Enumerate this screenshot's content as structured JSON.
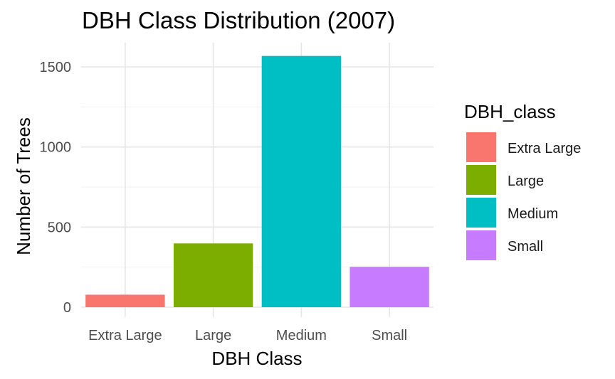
{
  "chart_data": {
    "type": "bar",
    "title": "DBH Class Distribution (2007)",
    "xlabel": "DBH Class",
    "ylabel": "Number of Trees",
    "categories": [
      "Extra Large",
      "Large",
      "Medium",
      "Small"
    ],
    "values": [
      78,
      398,
      1568,
      252
    ],
    "colors": [
      "#F8766D",
      "#7CAE00",
      "#00BFC4",
      "#C77CFF"
    ],
    "ylim": [
      0,
      1650
    ],
    "yticks": [
      0,
      500,
      1000,
      1500
    ],
    "yminor": [
      250,
      750,
      1250
    ],
    "grid": true,
    "legend": {
      "title": "DBH_class",
      "position": "right",
      "items": [
        "Extra Large",
        "Large",
        "Medium",
        "Small"
      ]
    }
  }
}
